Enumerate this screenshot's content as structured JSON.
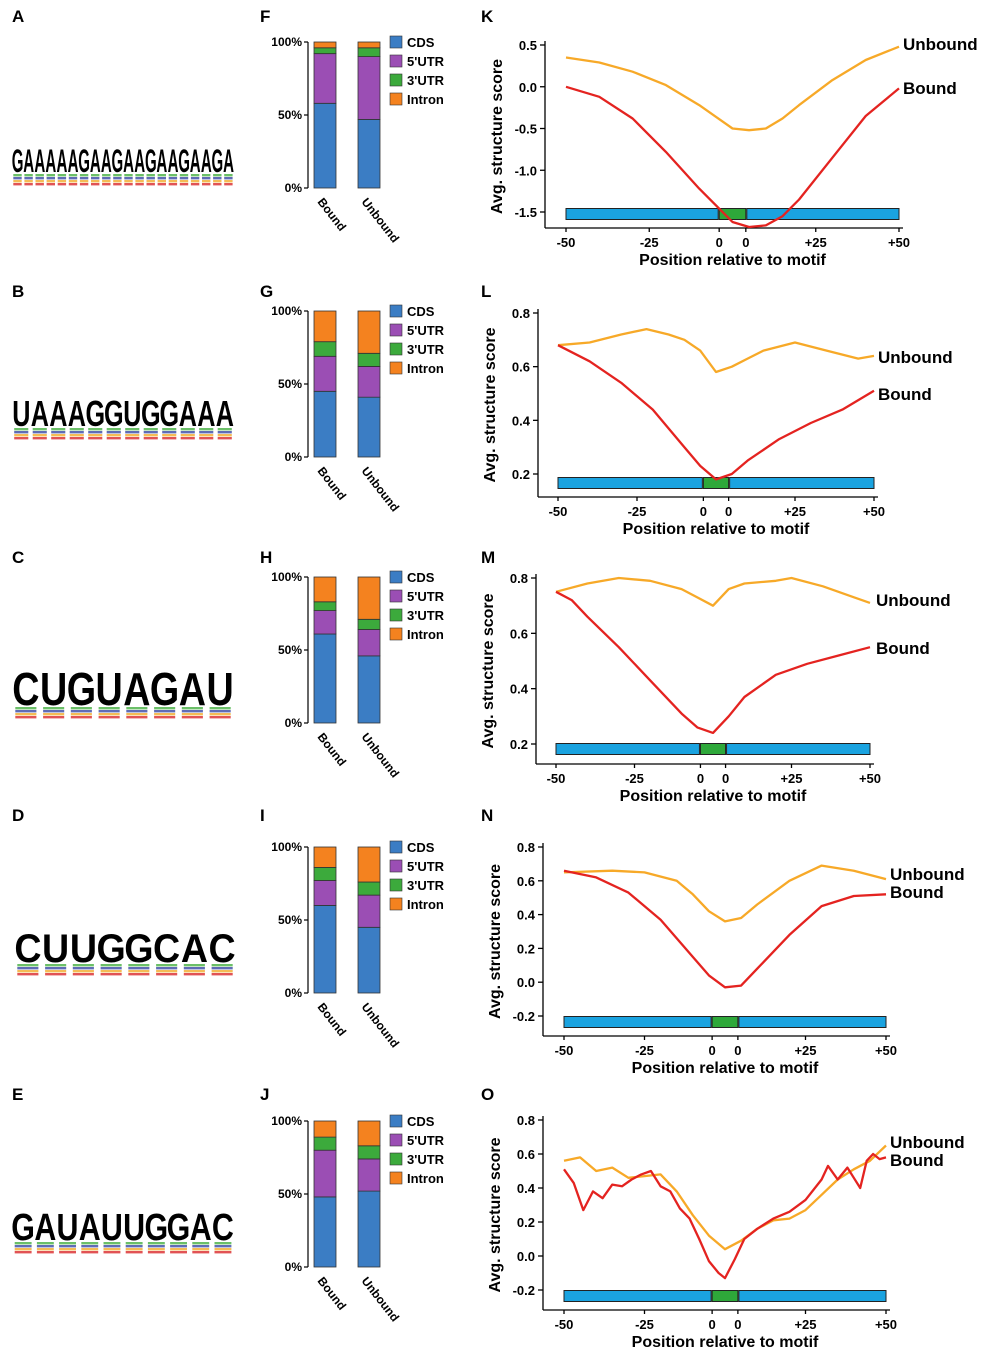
{
  "panel_labels": {
    "logos": [
      "A",
      "B",
      "C",
      "D",
      "E"
    ],
    "composition": [
      "F",
      "G",
      "H",
      "I",
      "J"
    ],
    "structure": [
      "K",
      "L",
      "M",
      "N",
      "O"
    ]
  },
  "motif_logos": [
    {
      "consensus": "GAAAAAGAAGAAGAAGAAGA",
      "colors": [
        "#f2a51c",
        "#3aaa35",
        "#3aaa35",
        "#3aaa35",
        "#3aaa35",
        "#3aaa35",
        "#f2a51c",
        "#3aaa35",
        "#3aaa35",
        "#f2a51c",
        "#3aaa35",
        "#3aaa35",
        "#f2a51c",
        "#3aaa35",
        "#3aaa35",
        "#f2a51c",
        "#3aaa35",
        "#3aaa35",
        "#f2a51c",
        "#3aaa35"
      ]
    },
    {
      "consensus": "UAAAGGUGGAAA",
      "colors": [
        "#d7191c",
        "#3aaa35",
        "#3aaa35",
        "#3aaa35",
        "#f2a51c",
        "#f2a51c",
        "#d7191c",
        "#f2a51c",
        "#f2a51c",
        "#3aaa35",
        "#3aaa35",
        "#3aaa35"
      ]
    },
    {
      "consensus": "CUGUAGAU",
      "colors": [
        "#2b3b9e",
        "#d7191c",
        "#f2a51c",
        "#d7191c",
        "#3aaa35",
        "#f2a51c",
        "#3aaa35",
        "#d7191c"
      ]
    },
    {
      "consensus": "CUUGGCAC",
      "colors": [
        "#2b3b9e",
        "#d7191c",
        "#d7191c",
        "#f2a51c",
        "#f2a51c",
        "#2b3b9e",
        "#3aaa35",
        "#2b3b9e"
      ]
    },
    {
      "consensus": "GAUAUUGGAC",
      "colors": [
        "#f2a51c",
        "#3aaa35",
        "#d7191c",
        "#3aaa35",
        "#d7191c",
        "#d7191c",
        "#f2a51c",
        "#f2a51c",
        "#3aaa35",
        "#2b3b9e"
      ]
    }
  ],
  "colors": {
    "CDS": "#3b7dc4",
    "5'UTR": "#9b4eb4",
    "3'UTR": "#3caa3c",
    "Intron": "#f4821f",
    "Bound": "#e42320",
    "Unbound": "#f7a928",
    "motif_bar_flank": "#1aa3e0",
    "motif_bar_center": "#2ea83a"
  },
  "chart_data": [
    {
      "panel": "F",
      "type": "bar",
      "stacked": true,
      "categories": [
        "Bound",
        "Unbound"
      ],
      "series": [
        {
          "name": "CDS",
          "values": [
            58,
            47
          ]
        },
        {
          "name": "5'UTR",
          "values": [
            34,
            43
          ]
        },
        {
          "name": "3'UTR",
          "values": [
            4,
            6
          ]
        },
        {
          "name": "Intron",
          "values": [
            4,
            4
          ]
        }
      ],
      "yticks": [
        "0%",
        "50%",
        "100%"
      ],
      "ylim": [
        0,
        100
      ],
      "legend": "right"
    },
    {
      "panel": "G",
      "type": "bar",
      "stacked": true,
      "categories": [
        "Bound",
        "Unbound"
      ],
      "series": [
        {
          "name": "CDS",
          "values": [
            45,
            41
          ]
        },
        {
          "name": "5'UTR",
          "values": [
            24,
            21
          ]
        },
        {
          "name": "3'UTR",
          "values": [
            10,
            9
          ]
        },
        {
          "name": "Intron",
          "values": [
            21,
            29
          ]
        }
      ],
      "yticks": [
        "0%",
        "50%",
        "100%"
      ],
      "ylim": [
        0,
        100
      ],
      "legend": "right"
    },
    {
      "panel": "H",
      "type": "bar",
      "stacked": true,
      "categories": [
        "Bound",
        "Unbound"
      ],
      "series": [
        {
          "name": "CDS",
          "values": [
            61,
            46
          ]
        },
        {
          "name": "5'UTR",
          "values": [
            16,
            18
          ]
        },
        {
          "name": "3'UTR",
          "values": [
            6,
            7
          ]
        },
        {
          "name": "Intron",
          "values": [
            17,
            29
          ]
        }
      ],
      "yticks": [
        "0%",
        "50%",
        "100%"
      ],
      "ylim": [
        0,
        100
      ],
      "legend": "right"
    },
    {
      "panel": "I",
      "type": "bar",
      "stacked": true,
      "categories": [
        "Bound",
        "Unbound"
      ],
      "series": [
        {
          "name": "CDS",
          "values": [
            60,
            45
          ]
        },
        {
          "name": "5'UTR",
          "values": [
            17,
            22
          ]
        },
        {
          "name": "3'UTR",
          "values": [
            9,
            9
          ]
        },
        {
          "name": "Intron",
          "values": [
            14,
            24
          ]
        }
      ],
      "yticks": [
        "0%",
        "50%",
        "100%"
      ],
      "ylim": [
        0,
        100
      ],
      "legend": "right"
    },
    {
      "panel": "J",
      "type": "bar",
      "stacked": true,
      "categories": [
        "Bound",
        "Unbound"
      ],
      "series": [
        {
          "name": "CDS",
          "values": [
            48,
            52
          ]
        },
        {
          "name": "5'UTR",
          "values": [
            32,
            22
          ]
        },
        {
          "name": "3'UTR",
          "values": [
            9,
            9
          ]
        },
        {
          "name": "Intron",
          "values": [
            11,
            17
          ]
        }
      ],
      "yticks": [
        "0%",
        "50%",
        "100%"
      ],
      "ylim": [
        0,
        100
      ],
      "legend": "right"
    },
    {
      "panel": "K",
      "type": "line",
      "xlabel": "Position relative to motif",
      "ylabel": "Avg. structure score",
      "xticks": [
        "-50",
        "-25",
        "0",
        "0",
        "+25",
        "+50"
      ],
      "yticks": [
        "0.5",
        "0.0",
        "-0.5",
        "-1.0",
        "-1.5"
      ],
      "ylim": [
        -1.7,
        0.55
      ],
      "motif_bar_level": -1.62,
      "series": [
        {
          "name": "Unbound",
          "x": [
            "-50",
            "-40",
            "-30",
            "-20",
            "-10",
            "-5",
            "0",
            "5",
            "10",
            "15",
            "20",
            "30",
            "40",
            "50"
          ],
          "y": [
            0.35,
            0.29,
            0.18,
            0.02,
            -0.22,
            -0.36,
            -0.5,
            -0.52,
            -0.5,
            -0.38,
            -0.22,
            0.08,
            0.32,
            0.48
          ]
        },
        {
          "name": "Bound",
          "x": [
            "-50",
            "-40",
            "-30",
            "-20",
            "-10",
            "-5",
            "0",
            "5",
            "10",
            "15",
            "20",
            "30",
            "40",
            "50"
          ],
          "y": [
            0.0,
            -0.12,
            -0.38,
            -0.78,
            -1.22,
            -1.42,
            -1.62,
            -1.68,
            -1.66,
            -1.55,
            -1.35,
            -0.85,
            -0.35,
            -0.02
          ]
        }
      ]
    },
    {
      "panel": "L",
      "type": "line",
      "xlabel": "Position relative to motif",
      "ylabel": "Avg. structure score",
      "xticks": [
        "-50",
        "-25",
        "0",
        "0",
        "+25",
        "+50"
      ],
      "yticks": [
        "0.8",
        "0.6",
        "0.4",
        "0.2"
      ],
      "ylim": [
        0.14,
        0.82
      ],
      "motif_bar_level": 0.15,
      "series": [
        {
          "name": "Unbound",
          "x": [
            "-50",
            "-40",
            "-30",
            "-22",
            "-15",
            "-10",
            "-5",
            "0",
            "5",
            "10",
            "15",
            "25",
            "35",
            "45",
            "50"
          ],
          "y": [
            0.68,
            0.69,
            0.72,
            0.74,
            0.72,
            0.7,
            0.66,
            0.58,
            0.6,
            0.63,
            0.66,
            0.69,
            0.66,
            0.63,
            0.64
          ]
        },
        {
          "name": "Bound",
          "x": [
            "-50",
            "-40",
            "-30",
            "-20",
            "-10",
            "-5",
            "0",
            "5",
            "10",
            "20",
            "30",
            "40",
            "50"
          ],
          "y": [
            0.68,
            0.62,
            0.54,
            0.44,
            0.3,
            0.23,
            0.18,
            0.2,
            0.25,
            0.33,
            0.39,
            0.44,
            0.51
          ]
        }
      ]
    },
    {
      "panel": "M",
      "type": "line",
      "xlabel": "Position relative to motif",
      "ylabel": "Avg. structure score",
      "xticks": [
        "-50",
        "-25",
        "0",
        "0",
        "+25",
        "+50"
      ],
      "yticks": [
        "0.8",
        "0.6",
        "0.4",
        "0.2"
      ],
      "ylim": [
        0.14,
        0.82
      ],
      "motif_bar_level": 0.15,
      "series": [
        {
          "name": "Unbound",
          "x": [
            "-50",
            "-40",
            "-30",
            "-20",
            "-10",
            "-5",
            "0",
            "5",
            "10",
            "20",
            "25",
            "35",
            "45",
            "50"
          ],
          "y": [
            0.75,
            0.78,
            0.8,
            0.79,
            0.76,
            0.73,
            0.7,
            0.76,
            0.78,
            0.79,
            0.8,
            0.77,
            0.73,
            0.71
          ]
        },
        {
          "name": "Bound",
          "x": [
            "-50",
            "-45",
            "-40",
            "-30",
            "-20",
            "-10",
            "-5",
            "0",
            "5",
            "10",
            "20",
            "30",
            "40",
            "50"
          ],
          "y": [
            0.75,
            0.72,
            0.66,
            0.55,
            0.43,
            0.31,
            0.26,
            0.24,
            0.3,
            0.37,
            0.45,
            0.49,
            0.52,
            0.55
          ]
        }
      ]
    },
    {
      "panel": "N",
      "type": "line",
      "xlabel": "Position relative to motif",
      "ylabel": "Avg. structure score",
      "xticks": [
        "-50",
        "-25",
        "0",
        "0",
        "+25",
        "+50"
      ],
      "yticks": [
        "0.8",
        "0.6",
        "0.4",
        "0.2",
        "0.0",
        "-0.2"
      ],
      "ylim": [
        -0.3,
        0.82
      ],
      "motif_bar_level": -0.24,
      "series": [
        {
          "name": "Unbound",
          "x": [
            "-50",
            "-35",
            "-25",
            "-15",
            "-10",
            "-5",
            "0",
            "5",
            "10",
            "20",
            "30",
            "40",
            "50"
          ],
          "y": [
            0.65,
            0.66,
            0.65,
            0.6,
            0.52,
            0.42,
            0.36,
            0.38,
            0.46,
            0.6,
            0.69,
            0.66,
            0.61
          ]
        },
        {
          "name": "Bound",
          "x": [
            "-50",
            "-40",
            "-30",
            "-20",
            "-10",
            "-5",
            "0",
            "5",
            "10",
            "20",
            "30",
            "40",
            "50"
          ],
          "y": [
            0.66,
            0.62,
            0.53,
            0.37,
            0.15,
            0.04,
            -0.03,
            -0.02,
            0.08,
            0.28,
            0.45,
            0.51,
            0.52
          ]
        }
      ]
    },
    {
      "panel": "O",
      "type": "line",
      "xlabel": "Position relative to motif",
      "ylabel": "Avg. structure score",
      "xticks": [
        "-50",
        "-25",
        "0",
        "0",
        "+25",
        "+50"
      ],
      "yticks": [
        "0.8",
        "0.6",
        "0.4",
        "0.2",
        "0.0",
        "-0.2"
      ],
      "ylim": [
        -0.3,
        0.82
      ],
      "motif_bar_level": -0.24,
      "series": [
        {
          "name": "Unbound",
          "x": [
            "-50",
            "-45",
            "-40",
            "-35",
            "-30",
            "-25",
            "-20",
            "-15",
            "-10",
            "-5",
            "0",
            "5",
            "10",
            "15",
            "20",
            "25",
            "30",
            "35",
            "40",
            "45",
            "50"
          ],
          "y": [
            0.56,
            0.58,
            0.5,
            0.52,
            0.46,
            0.47,
            0.48,
            0.38,
            0.24,
            0.12,
            0.04,
            0.09,
            0.16,
            0.21,
            0.22,
            0.27,
            0.36,
            0.45,
            0.51,
            0.56,
            0.65
          ]
        },
        {
          "name": "Bound",
          "x": [
            "-50",
            "-47",
            "-44",
            "-41",
            "-38",
            "-35",
            "-32",
            "-29",
            "-26",
            "-23",
            "-20",
            "-17",
            "-14",
            "-11",
            "-8",
            "-5",
            "-2",
            "0",
            "3",
            "6",
            "10",
            "15",
            "20",
            "25",
            "30",
            "32",
            "35",
            "38",
            "40",
            "42",
            "44",
            "46",
            "48",
            "50"
          ],
          "y": [
            0.51,
            0.43,
            0.27,
            0.38,
            0.34,
            0.42,
            0.41,
            0.45,
            0.48,
            0.5,
            0.41,
            0.38,
            0.28,
            0.22,
            0.1,
            -0.03,
            -0.1,
            -0.13,
            -0.02,
            0.1,
            0.16,
            0.22,
            0.26,
            0.33,
            0.45,
            0.53,
            0.45,
            0.52,
            0.46,
            0.4,
            0.56,
            0.6,
            0.57,
            0.58
          ]
        }
      ]
    }
  ]
}
